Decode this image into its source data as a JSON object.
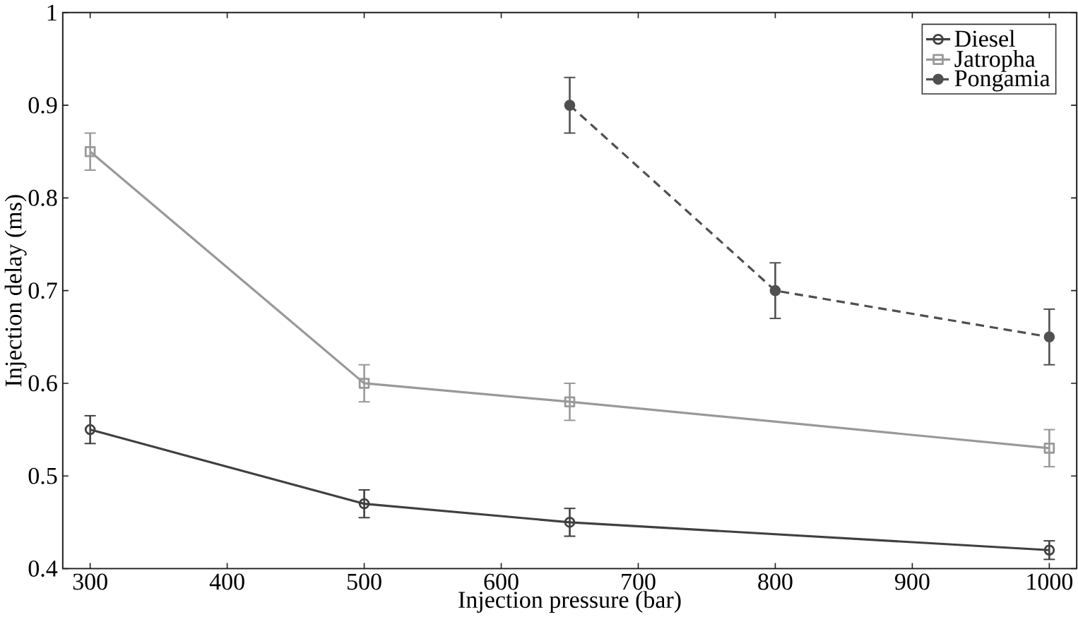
{
  "chart_data": {
    "type": "line",
    "xlabel": "Injection pressure (bar)",
    "ylabel": "Injection delay (ms)",
    "xlim": [
      280,
      1020
    ],
    "ylim": [
      0.4,
      1
    ],
    "xticks": [
      300,
      400,
      500,
      600,
      700,
      800,
      900,
      1000
    ],
    "yticks": [
      0.4,
      0.5,
      0.6,
      0.7,
      0.8,
      0.9,
      1
    ],
    "grid": false,
    "legend": "top right",
    "series": [
      {
        "name": "Diesel",
        "color": "#404040",
        "marker": "circle",
        "line_style": "solid",
        "x": [
          300,
          500,
          650,
          1000
        ],
        "values": [
          0.55,
          0.47,
          0.45,
          0.42
        ],
        "errors": [
          0.015,
          0.015,
          0.015,
          0.01
        ]
      },
      {
        "name": "Jatropha",
        "color": "#999999",
        "marker": "square",
        "line_style": "solid",
        "x": [
          300,
          500,
          650,
          1000
        ],
        "values": [
          0.85,
          0.6,
          0.58,
          0.53
        ],
        "errors": [
          0.02,
          0.02,
          0.02,
          0.02
        ]
      },
      {
        "name": "Pongamia",
        "color": "#505050",
        "marker": "filled circle",
        "line_style": "dashed",
        "x": [
          650,
          800,
          1000
        ],
        "values": [
          0.9,
          0.7,
          0.65
        ],
        "errors": [
          0.03,
          0.03,
          0.03
        ]
      }
    ]
  }
}
